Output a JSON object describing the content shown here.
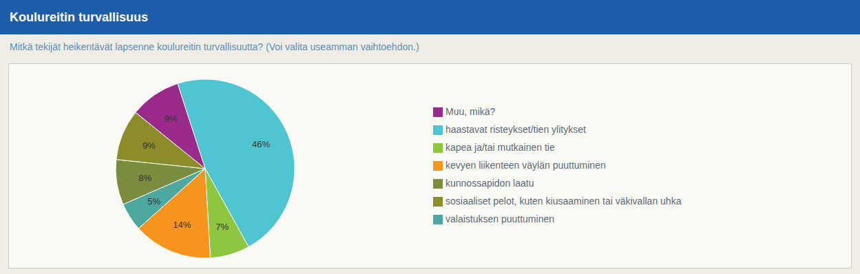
{
  "chart_data": {
    "type": "pie",
    "title": "Koulureitin turvallisuus",
    "subtitle": "Mitkä tekijät heikentävät lapsenne koulureitin turvallisuutta? (Voi valita useamman vaihtoehdon.)",
    "categories": [
      "haastavat risteykset/tien ylitykset",
      "kapea ja/tai mutkainen tie",
      "kevyen liikenteen väylän puuttuminen",
      "valaistuksen puuttuminen",
      "kunnossapidon laatu",
      "sosiaaliset pelot, kuten kiusaaminen tai väkivallan uhka",
      "Muu, mikä?"
    ],
    "values": [
      46,
      7,
      14,
      5,
      8,
      9,
      9
    ],
    "value_labels": [
      "46%",
      "7%",
      "14%",
      "5%",
      "8%",
      "9%",
      "9%"
    ],
    "colors": [
      "#4EC5D0",
      "#8DC63F",
      "#F7941D",
      "#4DA8A0",
      "#7A8C3E",
      "#8C8C2A",
      "#9B2B8A"
    ],
    "data_labels": true,
    "legend": "right"
  }
}
